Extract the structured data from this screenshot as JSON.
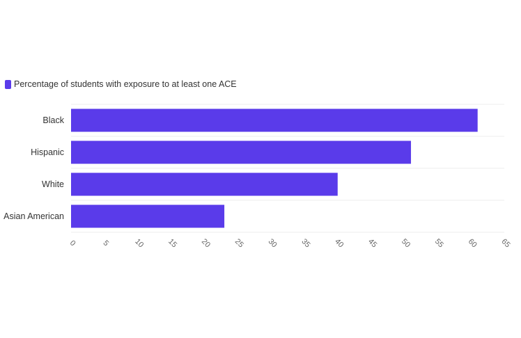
{
  "legend": {
    "label": "Percentage of students with exposure to at least one ACE",
    "color": "#5a3bea"
  },
  "chart_data": {
    "type": "bar",
    "orientation": "horizontal",
    "title": "",
    "xlabel": "",
    "ylabel": "",
    "categories": [
      "Black",
      "Hispanic",
      "White",
      "Asian American"
    ],
    "series": [
      {
        "name": "Percentage of students with exposure to at least one ACE",
        "values": [
          61,
          51,
          40,
          23
        ],
        "color": "#5a3bea"
      }
    ],
    "xlim": [
      0,
      65
    ],
    "x_ticks": [
      0,
      5,
      10,
      15,
      20,
      25,
      30,
      35,
      40,
      45,
      50,
      55,
      60,
      65
    ],
    "grid": true,
    "legend_position": "top-left"
  }
}
